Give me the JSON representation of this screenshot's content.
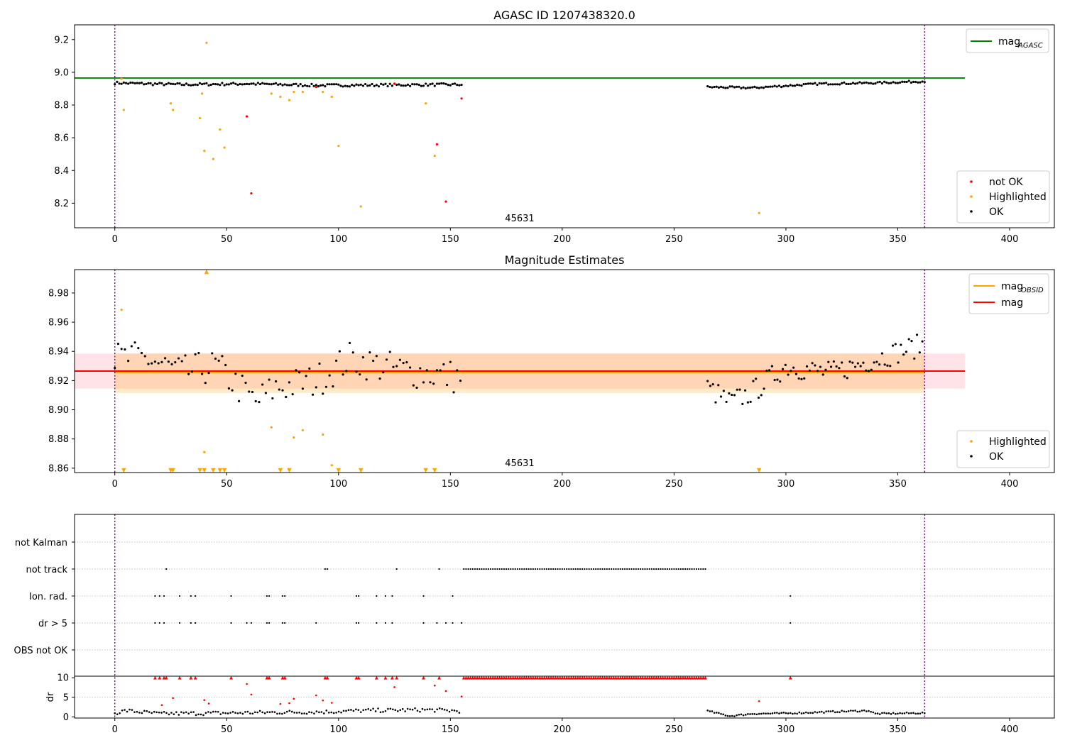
{
  "chart_data": [
    {
      "type": "scatter",
      "title": "AGASC ID 1207438320.0",
      "xlim": [
        -18,
        420
      ],
      "ylim": [
        8.05,
        9.29
      ],
      "xticks": [
        0,
        50,
        100,
        150,
        200,
        250,
        300,
        350,
        400
      ],
      "yticks": [
        8.2,
        8.4,
        8.6,
        8.8,
        9.0,
        9.2
      ],
      "ytick_labels": [
        "8.2",
        "8.4",
        "8.6",
        "8.8",
        "9.0",
        "9.2"
      ],
      "annotation": "45631",
      "annotation_x": 181,
      "obs_boundaries": [
        0,
        362
      ],
      "hlines": [
        {
          "name": "mag_AGASC",
          "y": 8.965,
          "x_range": [
            -18,
            380
          ],
          "color": "#008000"
        }
      ],
      "legend_top": [
        {
          "label": "mag",
          "sub": "AGASC",
          "color": "#008000",
          "kind": "line"
        }
      ],
      "legend_bottom": [
        {
          "label": "not OK",
          "color": "#ff0000",
          "kind": "dot"
        },
        {
          "label": "Highlighted",
          "color": "#ffa500",
          "kind": "dot"
        },
        {
          "label": "OK",
          "color": "#000000",
          "kind": "dot"
        }
      ],
      "series": [
        {
          "name": "OK",
          "color": "#000000",
          "trend": [
            [
              0,
              8.935
            ],
            [
              30,
              8.925
            ],
            [
              60,
              8.93
            ],
            [
              90,
              8.92
            ],
            [
              155,
              8.925
            ]
          ],
          "x_range": [
            0,
            155
          ],
          "step": 1,
          "noise": 0.008
        },
        {
          "name": "OK",
          "color": "#000000",
          "trend": [
            [
              265,
              8.91
            ],
            [
              285,
              8.905
            ],
            [
              315,
              8.93
            ],
            [
              340,
              8.935
            ],
            [
              362,
              8.945
            ]
          ],
          "x_range": [
            265,
            362
          ],
          "step": 1,
          "noise": 0.006
        },
        {
          "name": "Highlighted",
          "color": "#ffa500",
          "points": [
            [
              3,
              8.96
            ],
            [
              4,
              8.77
            ],
            [
              25,
              8.81
            ],
            [
              26,
              8.77
            ],
            [
              38,
              8.72
            ],
            [
              39,
              8.87
            ],
            [
              40,
              8.52
            ],
            [
              41,
              9.18
            ],
            [
              44,
              8.47
            ],
            [
              47,
              8.65
            ],
            [
              49,
              8.54
            ],
            [
              70,
              8.87
            ],
            [
              74,
              8.85
            ],
            [
              78,
              8.83
            ],
            [
              80,
              8.88
            ],
            [
              84,
              8.88
            ],
            [
              93,
              8.88
            ],
            [
              97,
              8.85
            ],
            [
              100,
              8.55
            ],
            [
              110,
              8.18
            ],
            [
              139,
              8.81
            ],
            [
              143,
              8.49
            ],
            [
              288,
              8.14
            ]
          ]
        },
        {
          "name": "not OK",
          "color": "#ff0000",
          "points": [
            [
              59,
              8.73
            ],
            [
              61,
              8.26
            ],
            [
              90,
              8.91
            ],
            [
              125,
              8.93
            ],
            [
              144,
              8.56
            ],
            [
              148,
              8.21
            ],
            [
              155,
              8.84
            ]
          ]
        }
      ]
    },
    {
      "type": "scatter",
      "title": "Magnitude Estimates",
      "xlim": [
        -18,
        420
      ],
      "ylim": [
        8.857,
        8.996
      ],
      "xticks": [
        0,
        50,
        100,
        150,
        200,
        250,
        300,
        350,
        400
      ],
      "yticks": [
        8.86,
        8.88,
        8.9,
        8.92,
        8.94,
        8.96,
        8.98
      ],
      "ytick_labels": [
        "8.86",
        "8.88",
        "8.90",
        "8.92",
        "8.94",
        "8.96",
        "8.98"
      ],
      "annotation": "45631",
      "annotation_x": 181,
      "obs_boundaries": [
        0,
        362
      ],
      "bands": [
        {
          "name": "mag range",
          "y": [
            8.9145,
            8.9385
          ],
          "x_range": [
            -18,
            380
          ],
          "color": "#ffc0cb",
          "opacity": 0.45
        },
        {
          "name": "mag_OBSID range",
          "y": [
            8.9115,
            8.9385
          ],
          "x_range": [
            0,
            362
          ],
          "color": "#ffa500",
          "opacity": 0.22
        }
      ],
      "hlines": [
        {
          "name": "mag_OBSID",
          "y": 8.9255,
          "x_range": [
            0,
            362
          ],
          "color": "#ffa500",
          "width": 2.5
        },
        {
          "name": "mag",
          "y": 8.9265,
          "x_range": [
            -18,
            380
          ],
          "color": "#ff0000",
          "width": 2
        }
      ],
      "legend_top": [
        {
          "label": "mag",
          "sub": "OBSID",
          "color": "#ffa500",
          "kind": "line"
        },
        {
          "label": "mag",
          "sub": "",
          "color": "#ff0000",
          "kind": "line"
        }
      ],
      "legend_bottom": [
        {
          "label": "Highlighted",
          "color": "#ffa500",
          "kind": "dot"
        },
        {
          "label": "OK",
          "color": "#000000",
          "kind": "dot"
        }
      ],
      "series": [
        {
          "name": "OK",
          "color": "#000000",
          "trend": [
            [
              0,
              8.935
            ],
            [
              15,
              8.935
            ],
            [
              30,
              8.925
            ],
            [
              45,
              8.93
            ],
            [
              63,
              8.905
            ],
            [
              72,
              8.915
            ],
            [
              90,
              8.92
            ],
            [
              105,
              8.935
            ],
            [
              125,
              8.928
            ],
            [
              155,
              8.922
            ]
          ],
          "x_range": [
            0,
            155
          ],
          "step": 1.5,
          "noise": 0.012
        },
        {
          "name": "OK",
          "color": "#000000",
          "trend": [
            [
              265,
              8.915
            ],
            [
              275,
              8.905
            ],
            [
              285,
              8.912
            ],
            [
              300,
              8.93
            ],
            [
              320,
              8.925
            ],
            [
              340,
              8.935
            ],
            [
              362,
              8.945
            ]
          ],
          "x_range": [
            265,
            362
          ],
          "step": 1.2,
          "noise": 0.008
        },
        {
          "name": "Highlighted",
          "color": "#ffa500",
          "points": [
            [
              3,
              8.9685
            ],
            [
              40,
              8.871
            ],
            [
              70,
              8.888
            ],
            [
              80,
              8.881
            ],
            [
              84,
              8.886
            ],
            [
              93,
              8.883
            ],
            [
              97,
              8.862
            ]
          ]
        },
        {
          "name": "Highlighted (below axis)",
          "color": "#ffa500",
          "marker": "tri-down",
          "points": [
            [
              4,
              8.858
            ],
            [
              25,
              8.858
            ],
            [
              26,
              8.858
            ],
            [
              38,
              8.858
            ],
            [
              40,
              8.858
            ],
            [
              44,
              8.858
            ],
            [
              47,
              8.858
            ],
            [
              49,
              8.858
            ],
            [
              74,
              8.858
            ],
            [
              78,
              8.858
            ],
            [
              100,
              8.858
            ],
            [
              110,
              8.858
            ],
            [
              139,
              8.858
            ],
            [
              143,
              8.858
            ],
            [
              288,
              8.858
            ]
          ]
        },
        {
          "name": "Highlighted (above axis)",
          "color": "#ffa500",
          "marker": "tri-up",
          "points": [
            [
              41,
              8.995
            ]
          ]
        }
      ]
    },
    {
      "type": "scatter",
      "title": "",
      "xlim": [
        -18,
        420
      ],
      "categories": [
        "not Kalman",
        "not track",
        "Ion. rad.",
        "dr > 5",
        "OBS not OK"
      ],
      "obs_boundaries": [
        0,
        362
      ],
      "series": [
        {
          "name": "not track",
          "color": "#000000",
          "points": [
            23,
            94,
            95,
            126,
            145
          ],
          "ranges": [
            [
              156,
              264,
              1
            ]
          ]
        },
        {
          "name": "Ion. rad.",
          "color": "#000000",
          "points": [
            18,
            20,
            22,
            29,
            34,
            36,
            52,
            68,
            69,
            75,
            76,
            108,
            109,
            117,
            121,
            124,
            138,
            151,
            302
          ]
        },
        {
          "name": "dr > 5",
          "color": "#000000",
          "points": [
            18,
            20,
            22,
            29,
            34,
            36,
            52,
            59,
            61,
            68,
            69,
            75,
            76,
            90,
            108,
            109,
            117,
            121,
            124,
            138,
            144,
            148,
            151,
            155,
            302
          ]
        }
      ]
    },
    {
      "type": "scatter",
      "title": "",
      "ylabel": "dr",
      "xlim": [
        -18,
        420
      ],
      "ylim": [
        -0.3,
        10.4
      ],
      "xticks": [
        0,
        50,
        100,
        150,
        200,
        250,
        300,
        350,
        400
      ],
      "yticks": [
        0,
        5,
        10
      ],
      "ytick_labels": [
        "0",
        "5",
        "10"
      ],
      "obs_boundaries": [
        0,
        362
      ],
      "series": [
        {
          "name": "OK",
          "color": "#000000",
          "trend": [
            [
              0,
              1.0
            ],
            [
              5,
              1.6
            ],
            [
              20,
              0.8
            ],
            [
              50,
              1.0
            ],
            [
              80,
              1.2
            ],
            [
              95,
              1.3
            ],
            [
              110,
              1.6
            ],
            [
              140,
              1.8
            ],
            [
              155,
              1.5
            ]
          ],
          "x_range": [
            0,
            155
          ],
          "step": 1.1,
          "noise": 0.5
        },
        {
          "name": "OK",
          "color": "#000000",
          "trend": [
            [
              265,
              1.5
            ],
            [
              275,
              0.2
            ],
            [
              285,
              0.8
            ],
            [
              300,
              0.9
            ],
            [
              320,
              1.3
            ],
            [
              337,
              1.6
            ],
            [
              340,
              0.8
            ],
            [
              362,
              1.0
            ]
          ],
          "x_range": [
            265,
            362
          ],
          "step": 1,
          "noise": 0.2
        },
        {
          "name": "not OK",
          "color": "#ff0000",
          "points": [
            [
              21,
              3.0
            ],
            [
              26,
              4.8
            ],
            [
              40,
              4.3
            ],
            [
              42,
              3.4
            ],
            [
              59,
              8.4
            ],
            [
              61,
              5.7
            ],
            [
              74,
              3.3
            ],
            [
              78,
              3.5
            ],
            [
              80,
              4.6
            ],
            [
              90,
              5.5
            ],
            [
              93,
              4.2
            ],
            [
              97,
              3.6
            ],
            [
              125,
              7.6
            ],
            [
              143,
              8.0
            ],
            [
              148,
              6.6
            ],
            [
              155,
              5.2
            ],
            [
              288,
              4.0
            ]
          ]
        },
        {
          "name": "not OK (clipped)",
          "color": "#ff0000",
          "marker": "tri-up",
          "points": [
            18,
            20,
            22,
            23,
            29,
            34,
            36,
            52,
            68,
            69,
            75,
            76,
            94,
            95,
            108,
            109,
            117,
            121,
            124,
            126,
            138,
            145,
            302
          ],
          "ranges": [
            [
              156,
              264,
              1
            ]
          ],
          "y": 10
        }
      ]
    }
  ]
}
